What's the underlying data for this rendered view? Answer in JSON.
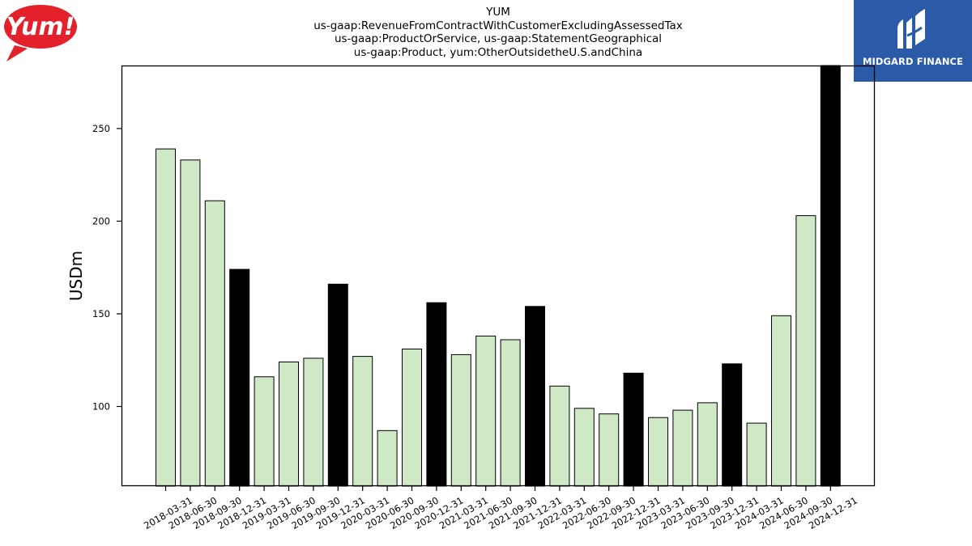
{
  "chart_data": {
    "type": "bar",
    "title_lines": [
      "YUM",
      "us-gaap:RevenueFromContractWithCustomerExcludingAssessedTax",
      "us-gaap:ProductOrService, us-gaap:StatementGeographical",
      "us-gaap:Product, yum:OtherOutsidetheU.S.andChina"
    ],
    "ylabel": "USDm",
    "xlabel": "",
    "ylim": [
      57,
      284
    ],
    "yticks": [
      100,
      150,
      200,
      250
    ],
    "categories": [
      "2018-03-31",
      "2018-06-30",
      "2018-09-30",
      "2018-12-31",
      "2019-03-31",
      "2019-06-30",
      "2019-09-30",
      "2019-12-31",
      "2020-03-31",
      "2020-06-30",
      "2020-09-30",
      "2020-12-31",
      "2021-03-31",
      "2021-06-30",
      "2021-09-30",
      "2021-12-31",
      "2022-03-31",
      "2022-06-30",
      "2022-09-30",
      "2022-12-31",
      "2023-03-31",
      "2023-06-30",
      "2023-09-30",
      "2023-12-31",
      "2024-03-31",
      "2024-06-30",
      "2024-09-30",
      "2024-12-31"
    ],
    "values": [
      239,
      233,
      211,
      174,
      116,
      124,
      126,
      166,
      127,
      87,
      131,
      156,
      128,
      138,
      136,
      154,
      111,
      99,
      96,
      118,
      94,
      98,
      102,
      123,
      91,
      149,
      203,
      284
    ],
    "highlight": [
      false,
      false,
      false,
      true,
      false,
      false,
      false,
      true,
      false,
      false,
      false,
      true,
      false,
      false,
      false,
      true,
      false,
      false,
      false,
      true,
      false,
      false,
      false,
      true,
      false,
      false,
      false,
      true
    ],
    "colors": {
      "normal": "#cfe9c7",
      "highlight": "#000000",
      "edge": "#000000"
    },
    "grid": false,
    "legend": "none"
  },
  "logos": {
    "brand": "Yum!",
    "partner": "MIDGARD FINANCE",
    "partner_color": "#2b5aa8",
    "brand_color": "#e4202a"
  }
}
